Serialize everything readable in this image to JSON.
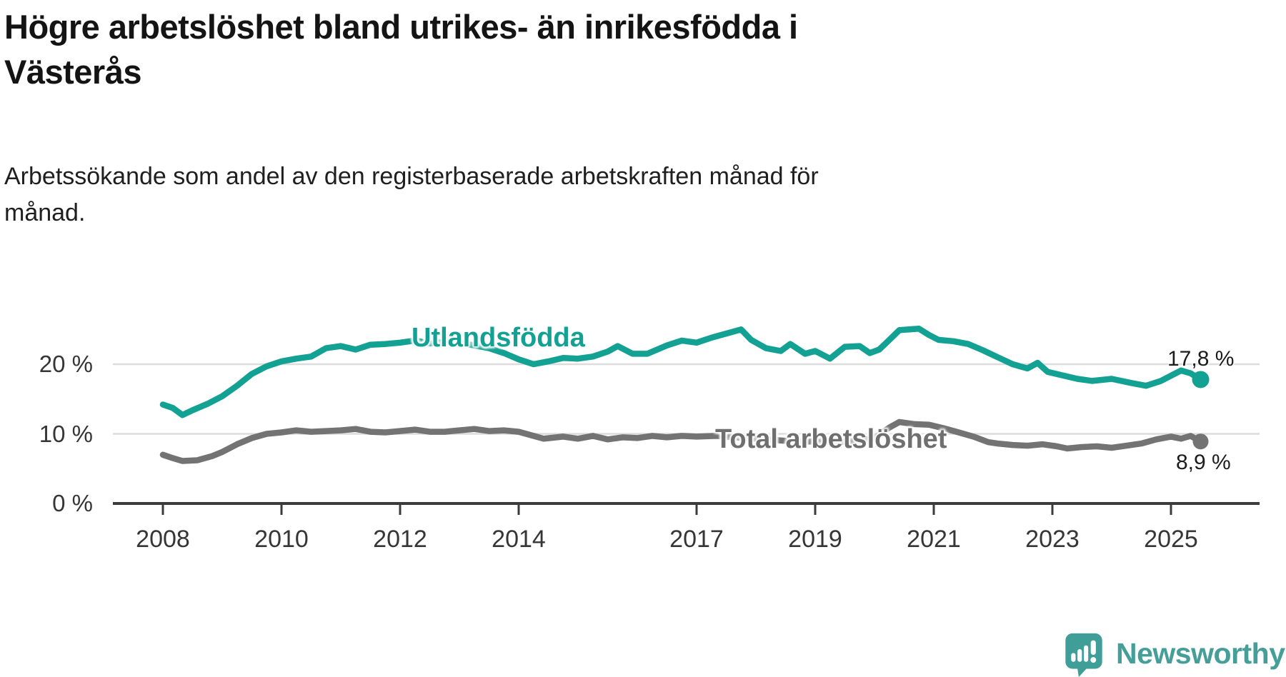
{
  "header": {
    "title_line1": "Högre arbetslöshet bland utrikes- än inrikesfödda i",
    "title_line2": "Västerås",
    "subtitle_line1": "Arbetssökande som andel av den registerbaserade arbetskraften månad för",
    "subtitle_line2": "månad."
  },
  "chart_data": {
    "type": "line",
    "title": "Högre arbetslöshet bland utrikes- än inrikesfödda i Västerås",
    "subtitle": "Arbetssökande som andel av den registerbaserade arbetskraften månad för månad.",
    "xlabel": "",
    "ylabel": "",
    "x_unit": "decimal_year",
    "xlim": [
      2007.2,
      2026.3
    ],
    "ylim": [
      0,
      27
    ],
    "grid": "horizontal",
    "legend_position": "inline-labels",
    "y_ticks": [
      {
        "value": 0,
        "label": "0 %"
      },
      {
        "value": 10,
        "label": "10 %"
      },
      {
        "value": 20,
        "label": "20 %"
      }
    ],
    "x_ticks": [
      2008,
      2010,
      2012,
      2014,
      2017,
      2019,
      2021,
      2023,
      2025
    ],
    "series": [
      {
        "name": "Utlandsfödda",
        "color": "#13a193",
        "end_value": 17.8,
        "end_label": "17,8 %",
        "points": [
          [
            2008.0,
            14.2
          ],
          [
            2008.17,
            13.7
          ],
          [
            2008.33,
            12.7
          ],
          [
            2008.5,
            13.4
          ],
          [
            2008.75,
            14.3
          ],
          [
            2009.0,
            15.4
          ],
          [
            2009.25,
            16.9
          ],
          [
            2009.5,
            18.6
          ],
          [
            2009.75,
            19.7
          ],
          [
            2010.0,
            20.4
          ],
          [
            2010.25,
            20.8
          ],
          [
            2010.5,
            21.1
          ],
          [
            2010.75,
            22.3
          ],
          [
            2011.0,
            22.6
          ],
          [
            2011.25,
            22.1
          ],
          [
            2011.5,
            22.8
          ],
          [
            2011.75,
            22.9
          ],
          [
            2012.0,
            23.1
          ],
          [
            2012.25,
            23.4
          ],
          [
            2012.5,
            23.0
          ],
          [
            2012.75,
            23.2
          ],
          [
            2013.0,
            23.1
          ],
          [
            2013.25,
            22.7
          ],
          [
            2013.5,
            22.3
          ],
          [
            2013.75,
            21.6
          ],
          [
            2014.0,
            20.7
          ],
          [
            2014.25,
            20.0
          ],
          [
            2014.5,
            20.4
          ],
          [
            2014.75,
            20.9
          ],
          [
            2015.0,
            20.8
          ],
          [
            2015.25,
            21.1
          ],
          [
            2015.5,
            21.8
          ],
          [
            2015.67,
            22.6
          ],
          [
            2015.92,
            21.5
          ],
          [
            2016.17,
            21.5
          ],
          [
            2016.5,
            22.7
          ],
          [
            2016.75,
            23.4
          ],
          [
            2017.0,
            23.1
          ],
          [
            2017.25,
            23.8
          ],
          [
            2017.5,
            24.4
          ],
          [
            2017.75,
            25.0
          ],
          [
            2017.92,
            23.5
          ],
          [
            2018.17,
            22.3
          ],
          [
            2018.42,
            21.9
          ],
          [
            2018.58,
            22.9
          ],
          [
            2018.83,
            21.5
          ],
          [
            2019.0,
            21.9
          ],
          [
            2019.25,
            20.8
          ],
          [
            2019.5,
            22.5
          ],
          [
            2019.75,
            22.6
          ],
          [
            2019.92,
            21.6
          ],
          [
            2020.08,
            22.1
          ],
          [
            2020.25,
            23.5
          ],
          [
            2020.42,
            24.9
          ],
          [
            2020.75,
            25.1
          ],
          [
            2020.92,
            24.2
          ],
          [
            2021.08,
            23.5
          ],
          [
            2021.33,
            23.3
          ],
          [
            2021.58,
            22.9
          ],
          [
            2021.83,
            22.0
          ],
          [
            2022.08,
            21.0
          ],
          [
            2022.33,
            20.0
          ],
          [
            2022.58,
            19.4
          ],
          [
            2022.75,
            20.2
          ],
          [
            2022.92,
            18.9
          ],
          [
            2023.17,
            18.4
          ],
          [
            2023.42,
            17.9
          ],
          [
            2023.67,
            17.6
          ],
          [
            2024.0,
            17.9
          ],
          [
            2024.33,
            17.3
          ],
          [
            2024.58,
            16.9
          ],
          [
            2024.83,
            17.6
          ],
          [
            2025.08,
            18.7
          ],
          [
            2025.17,
            19.1
          ],
          [
            2025.33,
            18.7
          ],
          [
            2025.5,
            17.8
          ]
        ]
      },
      {
        "name": "Total arbetslöshet",
        "color": "#737373",
        "end_value": 8.9,
        "end_label": "8,9 %",
        "points": [
          [
            2008.0,
            7.0
          ],
          [
            2008.17,
            6.5
          ],
          [
            2008.33,
            6.1
          ],
          [
            2008.58,
            6.2
          ],
          [
            2008.83,
            6.8
          ],
          [
            2009.0,
            7.4
          ],
          [
            2009.25,
            8.5
          ],
          [
            2009.5,
            9.4
          ],
          [
            2009.75,
            10.0
          ],
          [
            2010.0,
            10.2
          ],
          [
            2010.25,
            10.5
          ],
          [
            2010.5,
            10.3
          ],
          [
            2010.75,
            10.4
          ],
          [
            2011.0,
            10.5
          ],
          [
            2011.25,
            10.7
          ],
          [
            2011.5,
            10.3
          ],
          [
            2011.75,
            10.2
          ],
          [
            2012.0,
            10.4
          ],
          [
            2012.25,
            10.6
          ],
          [
            2012.5,
            10.3
          ],
          [
            2012.75,
            10.3
          ],
          [
            2013.0,
            10.5
          ],
          [
            2013.25,
            10.7
          ],
          [
            2013.5,
            10.4
          ],
          [
            2013.75,
            10.5
          ],
          [
            2014.0,
            10.3
          ],
          [
            2014.25,
            9.7
          ],
          [
            2014.42,
            9.3
          ],
          [
            2014.75,
            9.6
          ],
          [
            2015.0,
            9.3
          ],
          [
            2015.25,
            9.7
          ],
          [
            2015.5,
            9.2
          ],
          [
            2015.75,
            9.5
          ],
          [
            2016.0,
            9.4
          ],
          [
            2016.25,
            9.7
          ],
          [
            2016.5,
            9.5
          ],
          [
            2016.75,
            9.7
          ],
          [
            2017.0,
            9.6
          ],
          [
            2017.33,
            9.7
          ],
          [
            2017.67,
            9.5
          ],
          [
            2018.0,
            9.3
          ],
          [
            2018.33,
            9.1
          ],
          [
            2018.67,
            8.9
          ],
          [
            2019.0,
            8.9
          ],
          [
            2019.33,
            8.8
          ],
          [
            2019.67,
            9.0
          ],
          [
            2020.0,
            9.4
          ],
          [
            2020.25,
            10.9
          ],
          [
            2020.42,
            11.7
          ],
          [
            2020.67,
            11.4
          ],
          [
            2020.92,
            11.3
          ],
          [
            2021.17,
            10.8
          ],
          [
            2021.42,
            10.2
          ],
          [
            2021.67,
            9.6
          ],
          [
            2021.92,
            8.8
          ],
          [
            2022.08,
            8.6
          ],
          [
            2022.33,
            8.4
          ],
          [
            2022.58,
            8.3
          ],
          [
            2022.83,
            8.5
          ],
          [
            2023.08,
            8.2
          ],
          [
            2023.25,
            7.9
          ],
          [
            2023.5,
            8.1
          ],
          [
            2023.75,
            8.2
          ],
          [
            2024.0,
            8.0
          ],
          [
            2024.25,
            8.3
          ],
          [
            2024.5,
            8.6
          ],
          [
            2024.75,
            9.2
          ],
          [
            2025.0,
            9.6
          ],
          [
            2025.17,
            9.3
          ],
          [
            2025.33,
            9.7
          ],
          [
            2025.5,
            8.9
          ]
        ]
      }
    ]
  },
  "colors": {
    "accent_teal": "#13a193",
    "line_gray": "#737373",
    "gridline": "#dcdcdc",
    "axis": "#3b3b3b",
    "text_dark": "#141414"
  },
  "footer": {
    "brand": "Newsworthy",
    "brand_color": "#459e97"
  }
}
